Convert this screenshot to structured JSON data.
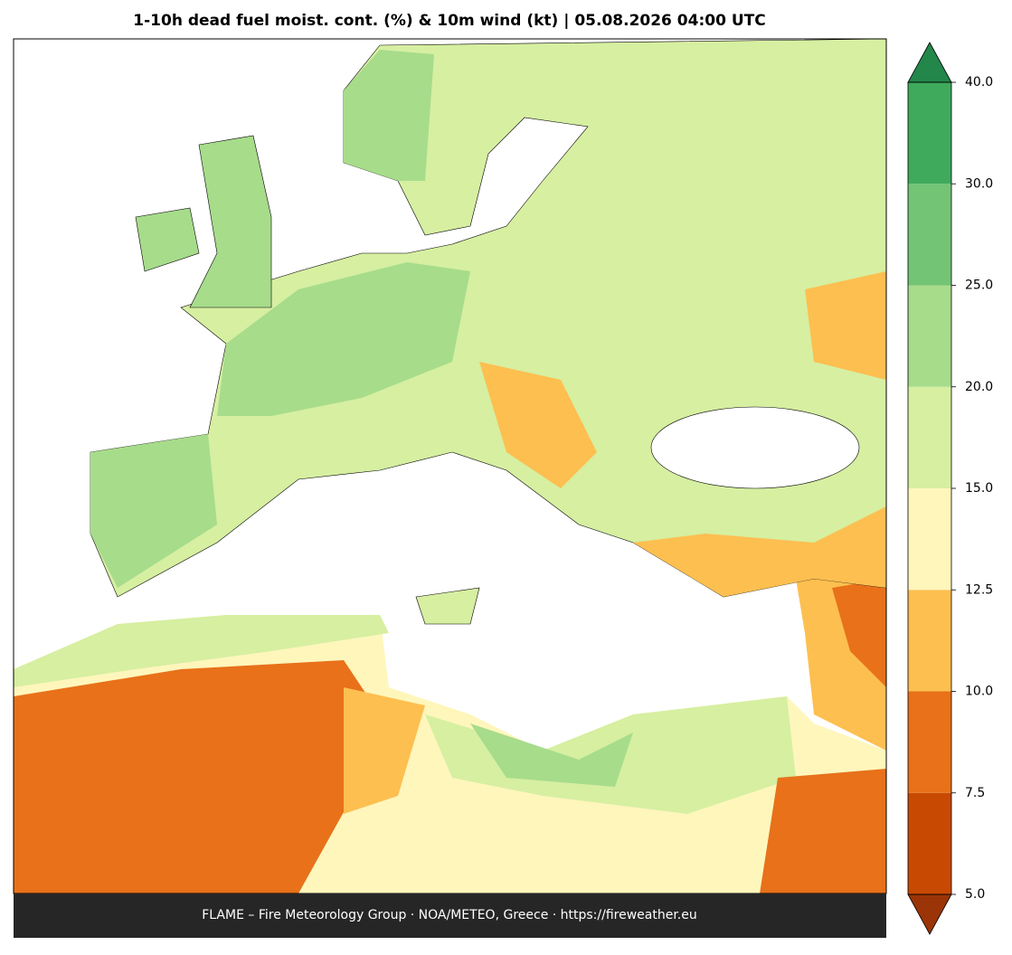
{
  "title": "1-10h dead fuel moist. cont. (%) & 10m wind (kt)  |  05.08.2026 04:00 UTC",
  "footer": "FLAME – Fire Meteorology Group · NOA/METEO, Greece · https://fireweather.eu",
  "colorbar": {
    "levels": [
      {
        "value": 5,
        "label": "5.0"
      },
      {
        "value": 7.5,
        "label": "7.5"
      },
      {
        "value": 10,
        "label": "10.0"
      },
      {
        "value": 12.5,
        "label": "12.5"
      },
      {
        "value": 15,
        "label": "15.0"
      },
      {
        "value": 20,
        "label": "20.0"
      },
      {
        "value": 25,
        "label": "25.0"
      },
      {
        "value": 30,
        "label": "30.0"
      },
      {
        "value": 40,
        "label": "40.0"
      }
    ],
    "colors": [
      "#c84a02",
      "#e8711a",
      "#fdbf50",
      "#fff6bc",
      "#d6efa1",
      "#a7dc8b",
      "#74c476",
      "#3faa5c"
    ],
    "under_color": "#9b3406",
    "over_color": "#23864a"
  }
}
